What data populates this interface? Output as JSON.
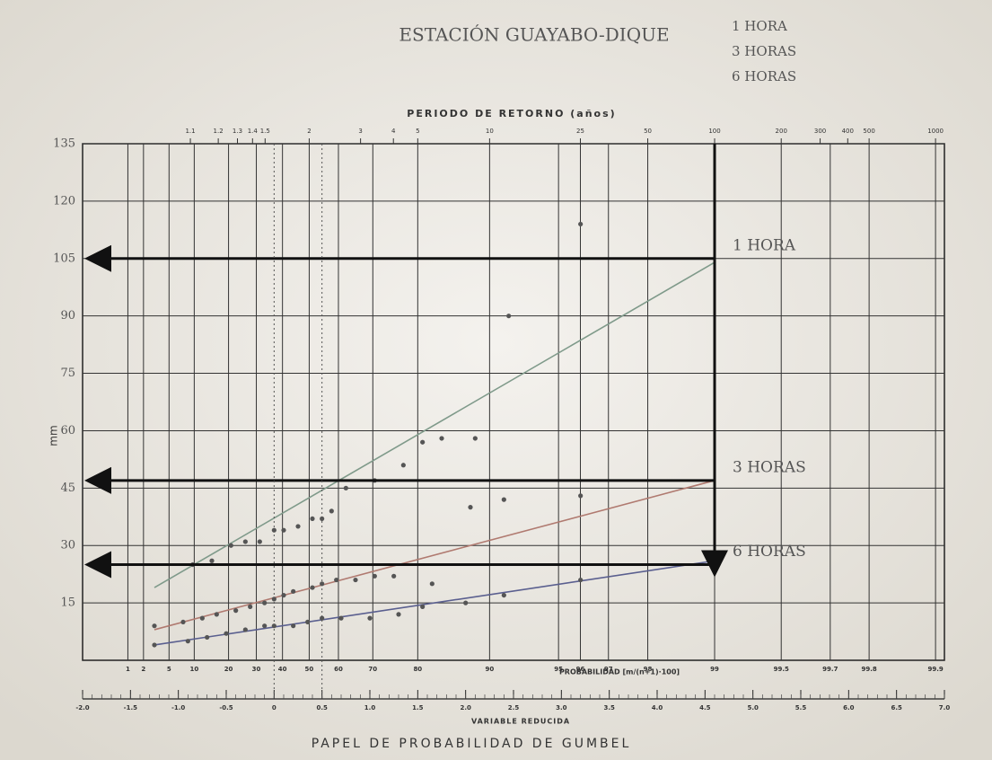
{
  "chart_data": {
    "type": "gumbel",
    "title": "ESTACIÓN GUAYABO-DIQUE",
    "notes": [
      "1 HORA",
      "3 HORAS",
      "6 HORAS"
    ],
    "top_axis_label": "PERIODO DE RETORNO (años)",
    "top_ticks": [
      1.1,
      1.2,
      1.3,
      1.4,
      1.5,
      2,
      3,
      4,
      5,
      10,
      25,
      50,
      100,
      200,
      300,
      400,
      500,
      1000
    ],
    "probability_label": "PROBABILIDAD [m/(n+1)·100]",
    "probability_ticks": [
      1,
      2,
      5,
      10,
      20,
      30,
      40,
      50,
      60,
      70,
      80,
      90,
      95,
      96,
      97,
      98,
      99,
      99.5,
      99.7,
      99.8,
      99.9
    ],
    "xlabel": "VARIABLE REDUCIDA",
    "xlim": [
      -2.0,
      7.0
    ],
    "xticks": [
      {
        "value": -2,
        "label": "-2.0"
      },
      {
        "value": -1.5,
        "label": "-1.5"
      },
      {
        "value": -1,
        "label": "-1.0"
      },
      {
        "value": -0.5,
        "label": "-0.5"
      },
      0,
      0.5,
      {
        "value": 1,
        "label": "1.0"
      },
      1.5,
      {
        "value": 2,
        "label": "2.0"
      },
      2.5,
      {
        "value": 3,
        "label": "3.0"
      },
      3.5,
      {
        "value": 4,
        "label": "4.0"
      },
      4.5,
      {
        "value": 5,
        "label": "5.0"
      },
      5.5,
      {
        "value": 6,
        "label": "6.0"
      },
      6.5,
      {
        "value": 7,
        "label": "7.0"
      }
    ],
    "ylabel": "mm",
    "ylim": [
      0,
      135
    ],
    "yticks": [
      15,
      30,
      45,
      60,
      75,
      90,
      105,
      120,
      135
    ],
    "footer": "PAPEL DE PROBABILIDAD DE GUMBEL",
    "design_return_period": 100,
    "series": [
      {
        "name": "1 HORA",
        "color": "#7f9a8a",
        "x": [
          -0.85,
          -0.65,
          -0.45,
          -0.3,
          -0.15,
          0.0,
          0.1,
          0.25,
          0.4,
          0.5,
          0.6,
          0.75,
          1.05,
          1.35,
          1.55,
          1.75,
          2.1,
          2.45,
          3.2
        ],
        "values": [
          25,
          26,
          30,
          31,
          31,
          34,
          34,
          35,
          37,
          37,
          39,
          45,
          47,
          51,
          57,
          58,
          58,
          90,
          114
        ],
        "fit_x": [
          -1.25,
          4.6
        ],
        "fit_values": [
          19,
          104
        ],
        "design_value": 105
      },
      {
        "name": "3 HORAS",
        "color": "#b07a70",
        "x": [
          -1.25,
          -0.95,
          -0.75,
          -0.6,
          -0.4,
          -0.25,
          -0.1,
          0.0,
          0.1,
          0.2,
          0.4,
          0.5,
          0.65,
          0.85,
          1.05,
          1.25,
          1.65,
          2.05,
          2.4,
          3.2
        ],
        "values": [
          9,
          10,
          11,
          12,
          13,
          14,
          15,
          16,
          17,
          18,
          19,
          20,
          21,
          21,
          22,
          22,
          20,
          40,
          42,
          43
        ],
        "fit_x": [
          -1.25,
          4.6
        ],
        "fit_values": [
          8,
          47
        ],
        "design_value": 47
      },
      {
        "name": "6 HORAS",
        "color": "#5a5f8f",
        "x": [
          -1.25,
          -0.9,
          -0.7,
          -0.5,
          -0.3,
          -0.1,
          0.0,
          0.2,
          0.35,
          0.5,
          0.7,
          1.0,
          1.3,
          1.55,
          2.0,
          2.4,
          3.2
        ],
        "values": [
          4,
          5,
          6,
          7,
          8,
          9,
          9,
          9,
          10,
          11,
          11,
          11,
          12,
          14,
          15,
          17,
          21
        ],
        "fit_x": [
          -1.25,
          4.6
        ],
        "fit_values": [
          4,
          26
        ],
        "design_value": 25
      }
    ]
  }
}
